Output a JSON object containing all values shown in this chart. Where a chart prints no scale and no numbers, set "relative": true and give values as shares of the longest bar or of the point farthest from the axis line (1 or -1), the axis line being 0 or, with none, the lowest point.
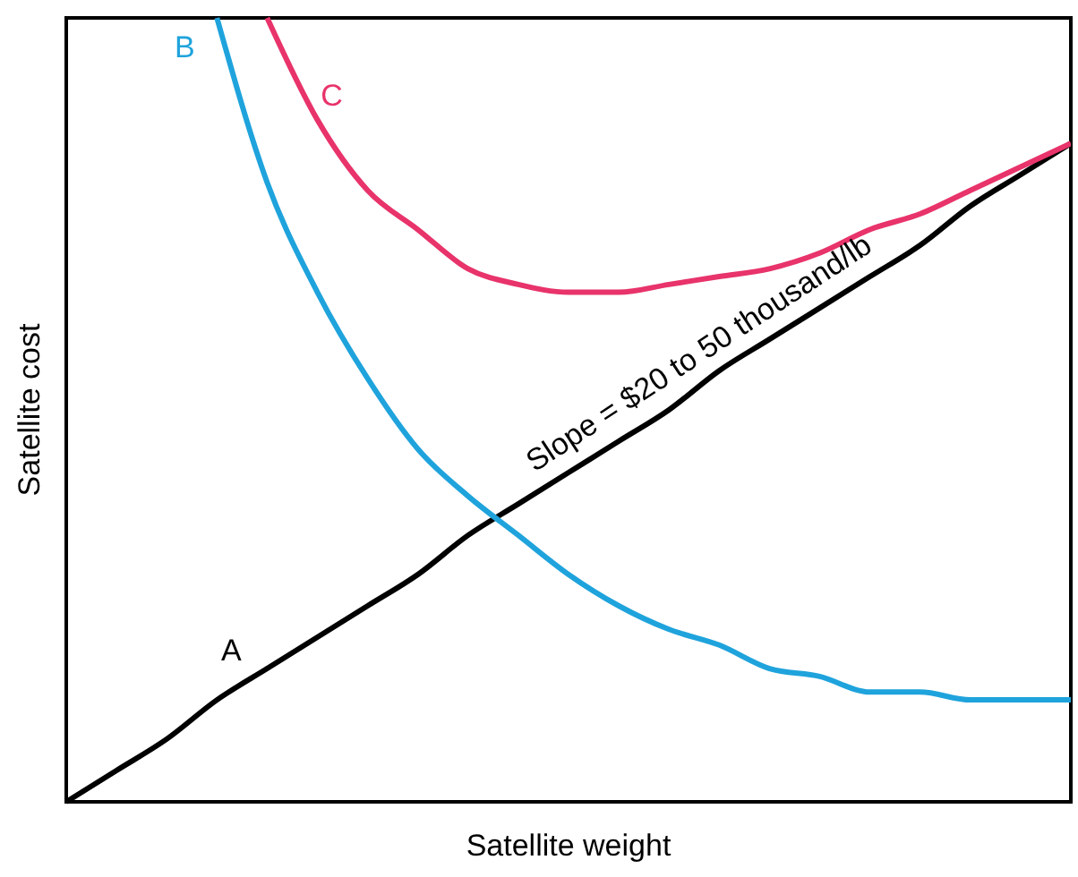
{
  "chart_data": {
    "type": "line",
    "relative": true,
    "xlabel": "Satellite weight",
    "ylabel": "Satellite cost",
    "categories": [
      null,
      null,
      null,
      null,
      null,
      null,
      null,
      null,
      null,
      null,
      null,
      null,
      null,
      null,
      null,
      null,
      null,
      null,
      null,
      null,
      null
    ],
    "series": [
      {
        "name": "A",
        "color": "#000000",
        "values": [
          0,
          0.04,
          0.08,
          0.13,
          0.17,
          0.21,
          0.25,
          0.29,
          0.34,
          0.38,
          0.42,
          0.46,
          0.5,
          0.55,
          0.59,
          0.63,
          0.67,
          0.71,
          0.76,
          0.8,
          0.84
        ]
      },
      {
        "name": "B",
        "color": "#1fa3dc",
        "values": [
          null,
          null,
          null,
          1,
          0.79,
          0.65,
          0.54,
          0.45,
          0.39,
          0.34,
          0.29,
          0.25,
          0.22,
          0.2,
          0.17,
          0.16,
          0.14,
          0.14,
          0.13,
          0.13,
          0.13
        ]
      },
      {
        "name": "C",
        "color": "#e8336b",
        "values": [
          null,
          null,
          null,
          null,
          1,
          0.87,
          0.78,
          0.73,
          0.68,
          0.66,
          0.65,
          0.65,
          0.66,
          0.67,
          0.68,
          0.7,
          0.73,
          0.75,
          0.78,
          0.81,
          0.84
        ]
      }
    ],
    "annotations": [
      "Slope = $20 to 50 thousand/lb"
    ]
  }
}
